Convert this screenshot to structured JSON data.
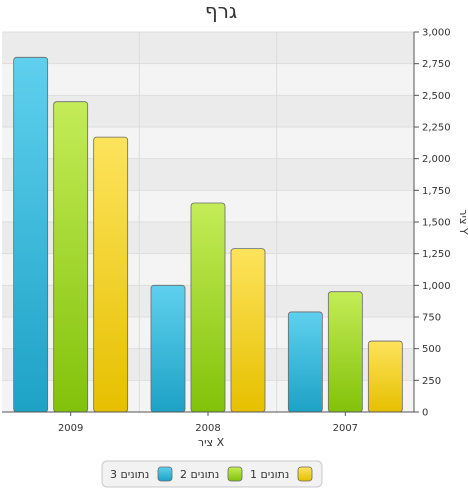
{
  "chart_data": {
    "type": "bar",
    "title": "גרף",
    "xlabel": "ציר X",
    "ylabel": "ציר Y",
    "categories": [
      "2009",
      "2008",
      "2007"
    ],
    "series": [
      {
        "name": "נתונים 3",
        "values": [
          2800,
          1000,
          790
        ],
        "color": "#2fb6d9"
      },
      {
        "name": "נתונים 2",
        "values": [
          2450,
          1650,
          950
        ],
        "color": "#9ad31e"
      },
      {
        "name": "נתונים 1",
        "values": [
          2170,
          1290,
          560
        ],
        "color": "#f5cf1f"
      }
    ],
    "ylim": [
      0,
      3000
    ],
    "yticks": [
      "0",
      "250",
      "500",
      "750",
      "1,000",
      "1,250",
      "1,500",
      "1,750",
      "2,000",
      "2,250",
      "2,500",
      "2,750",
      "3,000"
    ],
    "y_axis_side": "right",
    "grid": true,
    "legend_position": "bottom"
  }
}
